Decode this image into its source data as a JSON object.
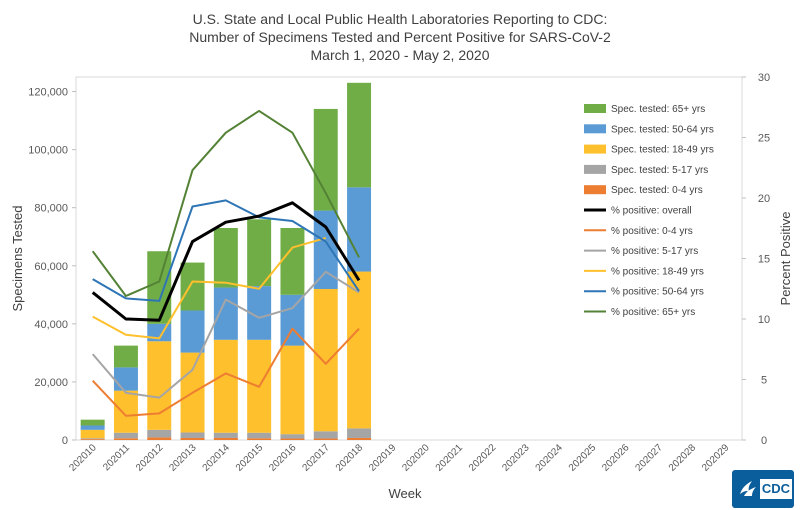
{
  "title": {
    "line1": "U.S. State and Local Public Health Laboratories Reporting to CDC:",
    "line2": "Number of Specimens Tested and Percent Positive for SARS-CoV-2",
    "line3": "March 1, 2020 - May 2, 2020"
  },
  "logo": {
    "text": "CDC",
    "emblem": "hhs-eagle-icon",
    "color": "#0b5e9c"
  },
  "chart_data": {
    "type": "bar",
    "title": "U.S. State and Local Public Health Laboratories Reporting to CDC: Number of Specimens Tested and Percent Positive for SARS-CoV-2",
    "subtitle": "March 1, 2020 - May 2, 2020",
    "xlabel": "Week",
    "ylabel": "Specimens Tested",
    "y2label": "Percent Positive",
    "ylim": [
      0,
      125000
    ],
    "y2lim": [
      0,
      30
    ],
    "yticks": [
      0,
      20000,
      40000,
      60000,
      80000,
      100000,
      120000
    ],
    "ytick_labels": [
      "0",
      "20,000",
      "40,000",
      "60,000",
      "80,000",
      "100,000",
      "120,000"
    ],
    "y2ticks": [
      0,
      5,
      10,
      15,
      20,
      25,
      30
    ],
    "y2tick_labels": [
      "0",
      "5",
      "10",
      "15",
      "20",
      "25",
      "30"
    ],
    "grid": false,
    "legend_position": "right",
    "categories": [
      "202010",
      "202011",
      "202012",
      "202013",
      "202014",
      "202015",
      "202016",
      "202017",
      "202018",
      "202019",
      "202020",
      "202021",
      "202022",
      "202023",
      "202024",
      "202025",
      "202026",
      "202027",
      "202028",
      "202029"
    ],
    "bar_series": [
      {
        "name": "Spec. tested: 0-4 yrs",
        "color": "#ed7d31",
        "values": [
          300,
          600,
          900,
          700,
          700,
          600,
          500,
          500,
          700
        ]
      },
      {
        "name": "Spec. tested: 5-17 yrs",
        "color": "#a5a5a5",
        "values": [
          300,
          1900,
          2600,
          1900,
          1800,
          1900,
          1500,
          2500,
          3300
        ]
      },
      {
        "name": "Spec. tested: 18-49 yrs",
        "color": "#ffc02d",
        "values": [
          2900,
          14500,
          30500,
          27500,
          32000,
          32000,
          30500,
          49000,
          54000
        ]
      },
      {
        "name": "Spec. tested: 50-64 yrs",
        "color": "#5b9bd5",
        "values": [
          1500,
          8000,
          6000,
          14500,
          18000,
          18500,
          17500,
          27000,
          29000
        ]
      },
      {
        "name": "Spec. tested: 65+ yrs",
        "color": "#70ad47",
        "values": [
          2000,
          7500,
          25000,
          16500,
          20500,
          23000,
          23000,
          35000,
          36000
        ]
      }
    ],
    "line_series": [
      {
        "name": "% positive: overall",
        "color": "#000000",
        "width": 3,
        "values": [
          12.2,
          10.0,
          9.9,
          16.4,
          18.0,
          18.5,
          19.6,
          17.6,
          13.2
        ]
      },
      {
        "name": "% positive: 0-4 yrs",
        "color": "#ed7d31",
        "width": 2,
        "values": [
          4.9,
          2.0,
          2.2,
          3.9,
          5.5,
          4.4,
          9.2,
          6.3,
          9.2
        ]
      },
      {
        "name": "% positive: 5-17 yrs",
        "color": "#a5a5a5",
        "width": 2,
        "values": [
          7.1,
          3.9,
          3.5,
          5.8,
          11.6,
          10.1,
          10.9,
          13.9,
          12.2
        ]
      },
      {
        "name": "% positive: 18-49 yrs",
        "color": "#ffc02d",
        "width": 2,
        "values": [
          10.2,
          8.7,
          8.4,
          13.1,
          13.0,
          12.5,
          15.9,
          16.7,
          null
        ]
      },
      {
        "name": "% positive: 50-64 yrs",
        "color": "#2e75b6",
        "width": 2,
        "values": [
          13.3,
          11.7,
          11.5,
          19.3,
          19.8,
          18.4,
          18.1,
          16.4,
          12.3
        ]
      },
      {
        "name": "% positive: 65+ yrs",
        "color": "#548235",
        "width": 2,
        "values": [
          15.6,
          11.9,
          13.1,
          22.3,
          25.4,
          27.2,
          25.4,
          20.4,
          15.1
        ]
      }
    ]
  }
}
